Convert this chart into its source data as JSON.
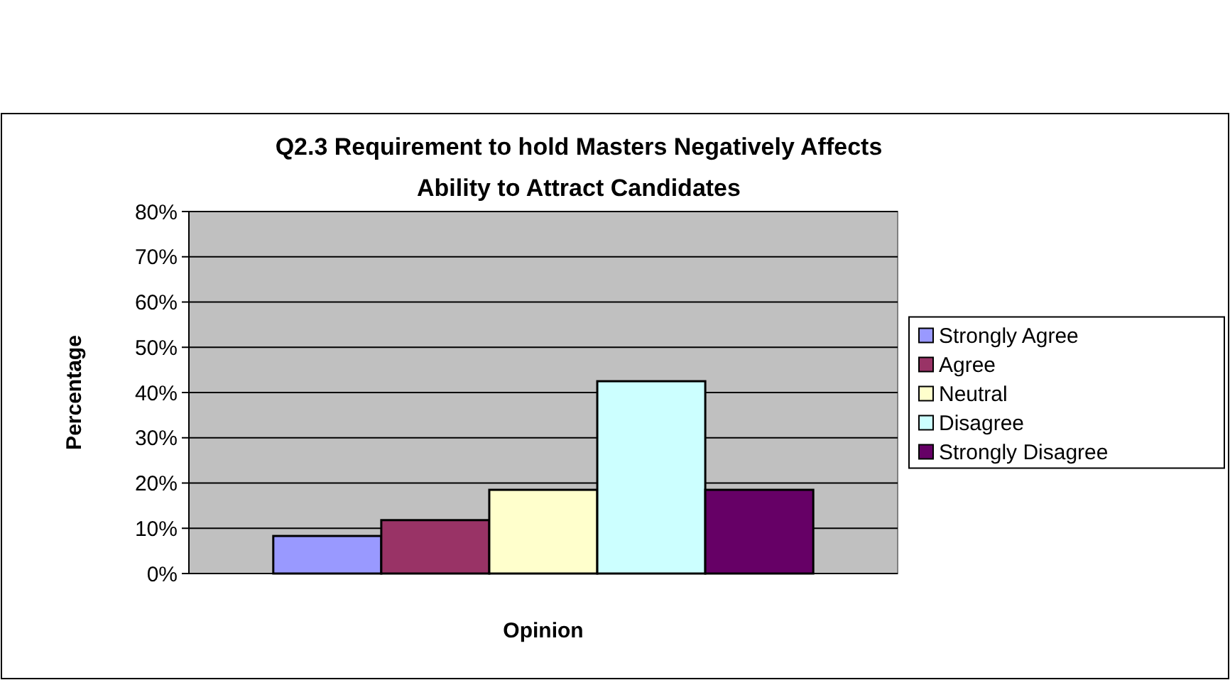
{
  "chart_data": {
    "type": "bar",
    "title": "Q2.3 Requirement to hold Masters Negatively Affects Ability to Attract Candidates",
    "xlabel": "Opinion",
    "ylabel": "Percentage",
    "categories": [
      null
    ],
    "series": [
      {
        "name": "Strongly Agree",
        "color": "#9999ff",
        "values": [
          8.3
        ]
      },
      {
        "name": "Agree",
        "color": "#993366",
        "values": [
          11.8
        ]
      },
      {
        "name": "Neutral",
        "color": "#ffffcc",
        "values": [
          18.5
        ]
      },
      {
        "name": "Disagree",
        "color": "#ccffff",
        "values": [
          42.5
        ]
      },
      {
        "name": "Strongly Disagree",
        "color": "#660066",
        "values": [
          18.5
        ]
      }
    ],
    "ylim": [
      0,
      80
    ],
    "yticks": [
      {
        "value": 0,
        "label": "0%"
      },
      {
        "value": 10,
        "label": "10%"
      },
      {
        "value": 20,
        "label": "20%"
      },
      {
        "value": 30,
        "label": "30%"
      },
      {
        "value": 40,
        "label": "40%"
      },
      {
        "value": 50,
        "label": "50%"
      },
      {
        "value": 60,
        "label": "60%"
      },
      {
        "value": 70,
        "label": "70%"
      },
      {
        "value": 80,
        "label": "80%"
      }
    ],
    "grid": "y",
    "legend": "right"
  }
}
